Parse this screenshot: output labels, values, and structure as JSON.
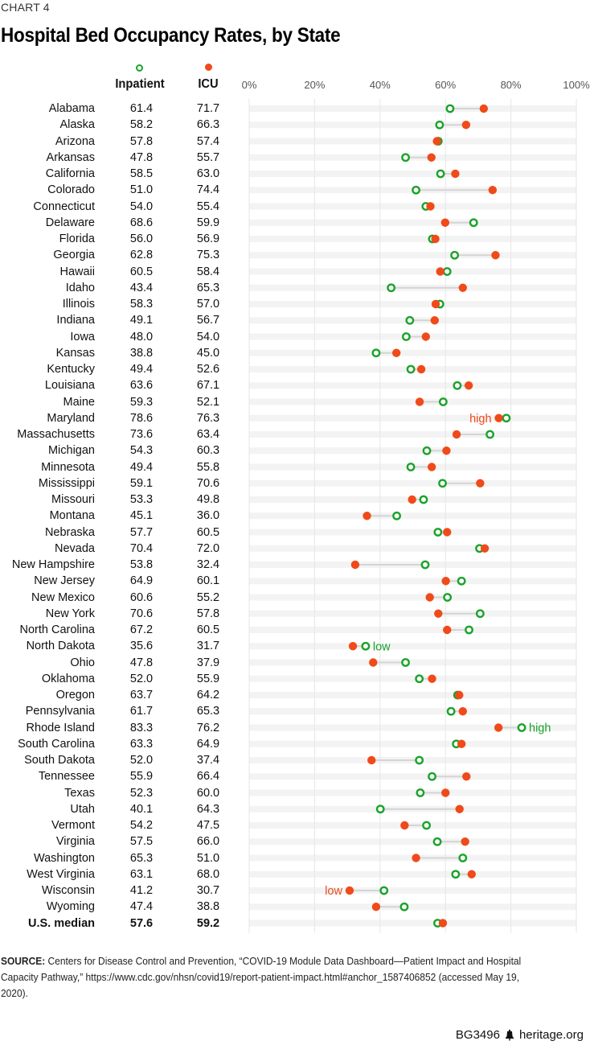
{
  "kicker": "CHART 4",
  "title": "Hospital Bed Occupancy Rates, by State",
  "footer": {
    "code": "BG3496",
    "logo_icon": "liberty-bell-icon",
    "site": "heritage.org"
  },
  "source": {
    "label": "SOURCE:",
    "text": "Centers for Disease Control and Prevention, “COVID-19 Module Data Dashboard—Patient Impact and Hospital Capacity Pathway,” https://www.cdc.gov/nhsn/covid19/report-patient-impact.html#anchor_1587406852 (accessed May 19, 2020)."
  },
  "colors": {
    "inpatient": "#1aa32a",
    "icu": "#f04a1a",
    "band": "#f3f3f3",
    "connector": "#d4d4d4",
    "grid": "#e6e6e6"
  },
  "chart_data": {
    "type": "scatter",
    "subtype": "dumbbell",
    "title": "Hospital Bed Occupancy Rates, by State",
    "xlabel": "",
    "ylabel": "",
    "xlim": [
      0,
      100
    ],
    "x_ticks": [
      "0%",
      "20%",
      "40%",
      "60%",
      "80%",
      "100%"
    ],
    "x_tick_values": [
      0,
      20,
      40,
      60,
      80,
      100
    ],
    "grid": true,
    "legend": {
      "placement": "top",
      "entries": [
        "Inpatient",
        "ICU"
      ]
    },
    "series": [
      {
        "name": "Inpatient",
        "marker": "hollow-circle",
        "color": "#1aa32a"
      },
      {
        "name": "ICU",
        "marker": "filled-circle",
        "color": "#f04a1a"
      }
    ],
    "rows": [
      {
        "state": "Alabama",
        "inpatient": 61.4,
        "icu": 71.7
      },
      {
        "state": "Alaska",
        "inpatient": 58.2,
        "icu": 66.3
      },
      {
        "state": "Arizona",
        "inpatient": 57.8,
        "icu": 57.4
      },
      {
        "state": "Arkansas",
        "inpatient": 47.8,
        "icu": 55.7
      },
      {
        "state": "California",
        "inpatient": 58.5,
        "icu": 63.0
      },
      {
        "state": "Colorado",
        "inpatient": 51.0,
        "icu": 74.4
      },
      {
        "state": "Connecticut",
        "inpatient": 54.0,
        "icu": 55.4
      },
      {
        "state": "Delaware",
        "inpatient": 68.6,
        "icu": 59.9
      },
      {
        "state": "Florida",
        "inpatient": 56.0,
        "icu": 56.9
      },
      {
        "state": "Georgia",
        "inpatient": 62.8,
        "icu": 75.3
      },
      {
        "state": "Hawaii",
        "inpatient": 60.5,
        "icu": 58.4
      },
      {
        "state": "Idaho",
        "inpatient": 43.4,
        "icu": 65.3
      },
      {
        "state": "Illinois",
        "inpatient": 58.3,
        "icu": 57.0
      },
      {
        "state": "Indiana",
        "inpatient": 49.1,
        "icu": 56.7
      },
      {
        "state": "Iowa",
        "inpatient": 48.0,
        "icu": 54.0
      },
      {
        "state": "Kansas",
        "inpatient": 38.8,
        "icu": 45.0
      },
      {
        "state": "Kentucky",
        "inpatient": 49.4,
        "icu": 52.6
      },
      {
        "state": "Louisiana",
        "inpatient": 63.6,
        "icu": 67.1
      },
      {
        "state": "Maine",
        "inpatient": 59.3,
        "icu": 52.1
      },
      {
        "state": "Maryland",
        "inpatient": 78.6,
        "icu": 76.3,
        "annotation": {
          "text": "high",
          "series": "icu",
          "side": "left"
        }
      },
      {
        "state": "Massachusetts",
        "inpatient": 73.6,
        "icu": 63.4
      },
      {
        "state": "Michigan",
        "inpatient": 54.3,
        "icu": 60.3
      },
      {
        "state": "Minnesota",
        "inpatient": 49.4,
        "icu": 55.8
      },
      {
        "state": "Mississippi",
        "inpatient": 59.1,
        "icu": 70.6
      },
      {
        "state": "Missouri",
        "inpatient": 53.3,
        "icu": 49.8
      },
      {
        "state": "Montana",
        "inpatient": 45.1,
        "icu": 36.0
      },
      {
        "state": "Nebraska",
        "inpatient": 57.7,
        "icu": 60.5
      },
      {
        "state": "Nevada",
        "inpatient": 70.4,
        "icu": 72.0
      },
      {
        "state": "New Hampshire",
        "inpatient": 53.8,
        "icu": 32.4
      },
      {
        "state": "New Jersey",
        "inpatient": 64.9,
        "icu": 60.1
      },
      {
        "state": "New Mexico",
        "inpatient": 60.6,
        "icu": 55.2
      },
      {
        "state": "New York",
        "inpatient": 70.6,
        "icu": 57.8
      },
      {
        "state": "North Carolina",
        "inpatient": 67.2,
        "icu": 60.5
      },
      {
        "state": "North Dakota",
        "inpatient": 35.6,
        "icu": 31.7,
        "annotation": {
          "text": "low",
          "series": "inpatient",
          "side": "right"
        }
      },
      {
        "state": "Ohio",
        "inpatient": 47.8,
        "icu": 37.9
      },
      {
        "state": "Oklahoma",
        "inpatient": 52.0,
        "icu": 55.9
      },
      {
        "state": "Oregon",
        "inpatient": 63.7,
        "icu": 64.2
      },
      {
        "state": "Pennsylvania",
        "inpatient": 61.7,
        "icu": 65.3
      },
      {
        "state": "Rhode Island",
        "inpatient": 83.3,
        "icu": 76.2,
        "annotation": {
          "text": "high",
          "series": "inpatient",
          "side": "right"
        }
      },
      {
        "state": "South Carolina",
        "inpatient": 63.3,
        "icu": 64.9
      },
      {
        "state": "South Dakota",
        "inpatient": 52.0,
        "icu": 37.4
      },
      {
        "state": "Tennessee",
        "inpatient": 55.9,
        "icu": 66.4
      },
      {
        "state": "Texas",
        "inpatient": 52.3,
        "icu": 60.0
      },
      {
        "state": "Utah",
        "inpatient": 40.1,
        "icu": 64.3
      },
      {
        "state": "Vermont",
        "inpatient": 54.2,
        "icu": 47.5
      },
      {
        "state": "Virginia",
        "inpatient": 57.5,
        "icu": 66.0
      },
      {
        "state": "Washington",
        "inpatient": 65.3,
        "icu": 51.0
      },
      {
        "state": "West Virginia",
        "inpatient": 63.1,
        "icu": 68.0
      },
      {
        "state": "Wisconsin",
        "inpatient": 41.2,
        "icu": 30.7,
        "annotation": {
          "text": "low",
          "series": "icu",
          "side": "left"
        }
      },
      {
        "state": "Wyoming",
        "inpatient": 47.4,
        "icu": 38.8
      },
      {
        "state": "U.S. median",
        "inpatient": 57.6,
        "icu": 59.2,
        "bold": true
      }
    ]
  }
}
